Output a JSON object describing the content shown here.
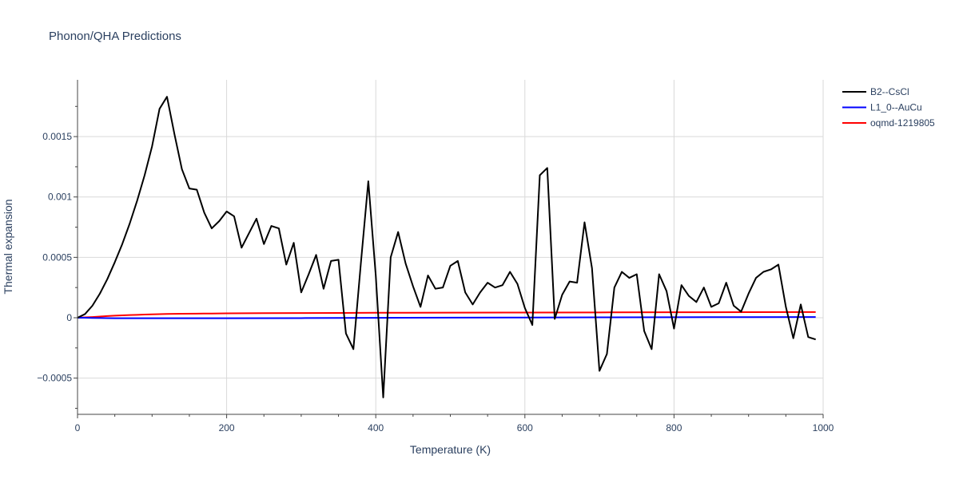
{
  "chart_data": {
    "type": "line",
    "title": "Phonon/QHA Predictions",
    "xlabel": "Temperature (K)",
    "ylabel": "Thermal expansion",
    "xlim": [
      0,
      1000
    ],
    "ylim": [
      -0.0008,
      0.00197
    ],
    "xticks": [
      0,
      200,
      400,
      600,
      800,
      1000
    ],
    "xtick_labels": [
      "0",
      "200",
      "400",
      "600",
      "800",
      "1000"
    ],
    "yticks": [
      -0.0005,
      0,
      0.0005,
      0.001,
      0.0015
    ],
    "ytick_labels": [
      "−0.0005",
      "0",
      "0.0005",
      "0.001",
      "0.0015"
    ],
    "grid": true,
    "legend_position": "top-right",
    "series": [
      {
        "name": "B2--CsCl",
        "color": "#000000",
        "x": [
          0,
          10,
          20,
          30,
          40,
          50,
          60,
          70,
          80,
          90,
          100,
          110,
          120,
          130,
          140,
          150,
          160,
          170,
          180,
          190,
          200,
          210,
          220,
          230,
          240,
          250,
          260,
          270,
          280,
          290,
          300,
          310,
          320,
          330,
          340,
          350,
          360,
          370,
          380,
          390,
          400,
          410,
          420,
          430,
          440,
          450,
          460,
          470,
          480,
          490,
          500,
          510,
          520,
          530,
          540,
          550,
          560,
          570,
          580,
          590,
          600,
          610,
          620,
          630,
          640,
          650,
          660,
          670,
          680,
          690,
          700,
          710,
          720,
          730,
          740,
          750,
          760,
          770,
          780,
          790,
          800,
          810,
          820,
          830,
          840,
          850,
          860,
          870,
          880,
          890,
          900,
          910,
          920,
          930,
          940,
          950,
          960,
          970,
          980,
          990
        ],
        "y": [
          0,
          3e-05,
          0.0001,
          0.0002,
          0.00032,
          0.00046,
          0.00061,
          0.00078,
          0.00097,
          0.00118,
          0.00142,
          0.00173,
          0.00183,
          0.00152,
          0.00123,
          0.00107,
          0.00106,
          0.00087,
          0.00074,
          0.0008,
          0.00088,
          0.00084,
          0.00058,
          0.0007,
          0.00082,
          0.00061,
          0.00076,
          0.00074,
          0.00044,
          0.00062,
          0.00021,
          0.00036,
          0.00052,
          0.00024,
          0.00047,
          0.00048,
          -0.00013,
          -0.00026,
          0.00045,
          0.00113,
          0.00035,
          -0.00066,
          0.0005,
          0.00071,
          0.00045,
          0.00026,
          9e-05,
          0.00035,
          0.00024,
          0.00025,
          0.00043,
          0.00047,
          0.00021,
          0.00011,
          0.00021,
          0.00029,
          0.00025,
          0.00027,
          0.00038,
          0.00028,
          8e-05,
          -6e-05,
          0.00118,
          0.00124,
          -1e-05,
          0.00019,
          0.0003,
          0.00029,
          0.00079,
          0.00041,
          -0.00044,
          -0.0003,
          0.00025,
          0.00038,
          0.00033,
          0.00036,
          -0.00011,
          -0.00026,
          0.00036,
          0.00022,
          -9e-05,
          0.00027,
          0.00018,
          0.00013,
          0.00025,
          9e-05,
          0.00012,
          0.00029,
          0.0001,
          5e-05,
          0.0002,
          0.00033,
          0.00038,
          0.0004,
          0.00044,
          9e-05,
          -0.00017,
          0.00011,
          -0.00016,
          -0.00018
        ]
      },
      {
        "name": "L1_0--AuCu",
        "color": "#0000ff",
        "x": [
          0,
          10,
          20,
          50,
          100,
          200,
          300,
          400,
          500,
          600,
          700,
          800,
          900,
          990
        ],
        "y": [
          0,
          0,
          -2e-06,
          -4e-06,
          -4e-06,
          -4e-06,
          -3e-06,
          -1e-06,
          5e-07,
          2e-06,
          3e-06,
          4e-06,
          5e-06,
          6e-06
        ]
      },
      {
        "name": "oqmd-1219805",
        "color": "#ff0000",
        "x": [
          0,
          10,
          20,
          30,
          40,
          50,
          60,
          70,
          80,
          90,
          100,
          120,
          140,
          160,
          180,
          200,
          250,
          300,
          350,
          400,
          500,
          600,
          700,
          800,
          900,
          990
        ],
        "y": [
          0,
          3e-06,
          6e-06,
          1e-05,
          1.4e-05,
          1.7e-05,
          2e-05,
          2.2e-05,
          2.4e-05,
          2.6e-05,
          2.8e-05,
          3.1e-05,
          3.3e-05,
          3.4e-05,
          3.5e-05,
          3.6e-05,
          3.8e-05,
          3.9e-05,
          4e-05,
          4.1e-05,
          4.2e-05,
          4.3e-05,
          4.4e-05,
          4.5e-05,
          4.6e-05,
          4.7e-05
        ]
      }
    ]
  }
}
